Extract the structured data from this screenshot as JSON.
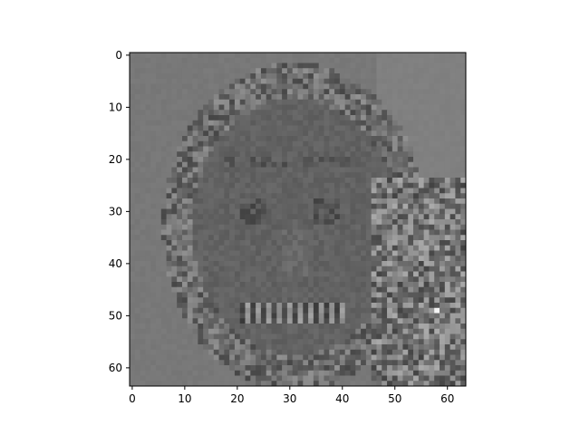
{
  "chart_data": {
    "type": "heatmap",
    "title": "",
    "xlabel": "",
    "ylabel": "",
    "colormap": "gray",
    "grid": false,
    "legend": "none",
    "rows": 64,
    "cols": 64,
    "xlim": [
      -0.5,
      63.5
    ],
    "ylim": [
      63.5,
      -0.5
    ],
    "x_ticks": [
      {
        "value": 0,
        "label": "0"
      },
      {
        "value": 10,
        "label": "10"
      },
      {
        "value": 20,
        "label": "20"
      },
      {
        "value": 30,
        "label": "30"
      },
      {
        "value": 40,
        "label": "40"
      },
      {
        "value": 50,
        "label": "50"
      },
      {
        "value": 60,
        "label": "60"
      }
    ],
    "y_ticks": [
      {
        "value": 0,
        "label": "0"
      },
      {
        "value": 10,
        "label": "10"
      },
      {
        "value": 20,
        "label": "20"
      },
      {
        "value": 30,
        "label": "30"
      },
      {
        "value": 40,
        "label": "40"
      },
      {
        "value": 50,
        "label": "50"
      },
      {
        "value": 60,
        "label": "60"
      }
    ],
    "image_description_values": "64x64 grayscale image of a smiling face with curly hair; mid-gray background with high-frequency noise in hair region"
  }
}
